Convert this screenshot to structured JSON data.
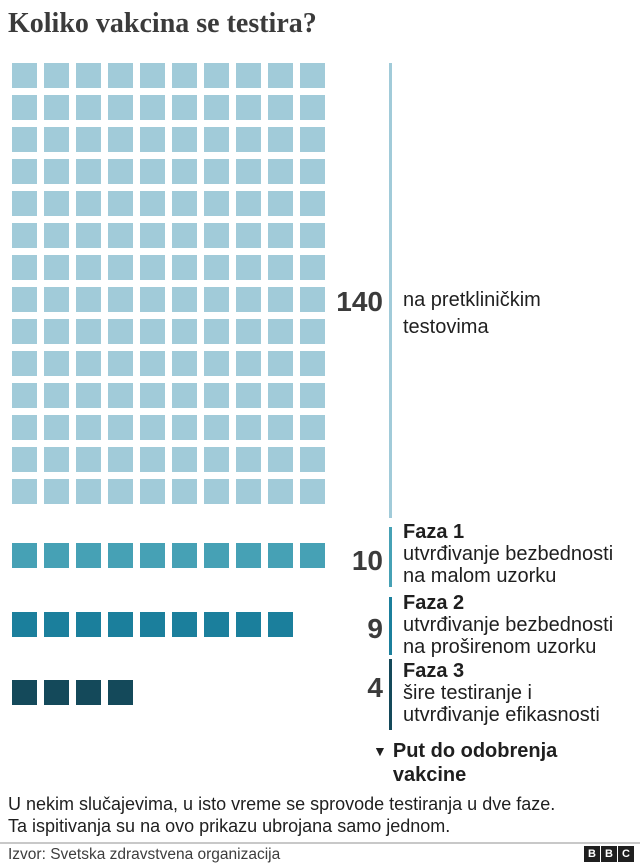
{
  "title": "Koliko vakcina se testira?",
  "colors": {
    "preclinical": "#a1cbd9",
    "phase1": "#46a1b5",
    "phase2": "#1b7f9c",
    "phase3": "#14495a",
    "heading_text": "#3b3b3b",
    "body_text": "#1f1f1f",
    "divider": "#c8c8c8",
    "logo_block": "#1f1f1f"
  },
  "chart_data": {
    "type": "waffle",
    "title": "Koliko vakcina se testira?",
    "columns": 10,
    "square_unit": "1 vakcina",
    "groups": [
      {
        "id": "preclinical",
        "value": 140,
        "color": "#a1cbd9",
        "phase_label": "",
        "desc_lines": [
          "na pretkliničkim",
          "testovima"
        ]
      },
      {
        "id": "phase1",
        "value": 10,
        "color": "#46a1b5",
        "phase_label": "Faza 1",
        "desc_lines": [
          "utvrđivanje bezbednosti",
          "na malom uzorku"
        ]
      },
      {
        "id": "phase2",
        "value": 9,
        "color": "#1b7f9c",
        "phase_label": "Faza 2",
        "desc_lines": [
          "utvrđivanje bezbednosti",
          "na proširenom uzorku"
        ]
      },
      {
        "id": "phase3",
        "value": 4,
        "color": "#14495a",
        "phase_label": "Faza 3",
        "desc_lines": [
          "šire testiranje i",
          "utvrđivanje efikasnosti"
        ]
      }
    ]
  },
  "annotation": {
    "arrow": "▼",
    "lines": [
      "Put do odobrenja",
      "vakcine"
    ]
  },
  "footnote_lines": [
    "U nekim slučajevima, u isto vreme se sprovode testiranja u dve faze.",
    "Ta ispitivanja su na ovo prikazu ubrojana samo jednom."
  ],
  "source": "Izvor: Svetska zdravstvena organizacija",
  "logo": {
    "letters": [
      "B",
      "B",
      "C"
    ]
  }
}
